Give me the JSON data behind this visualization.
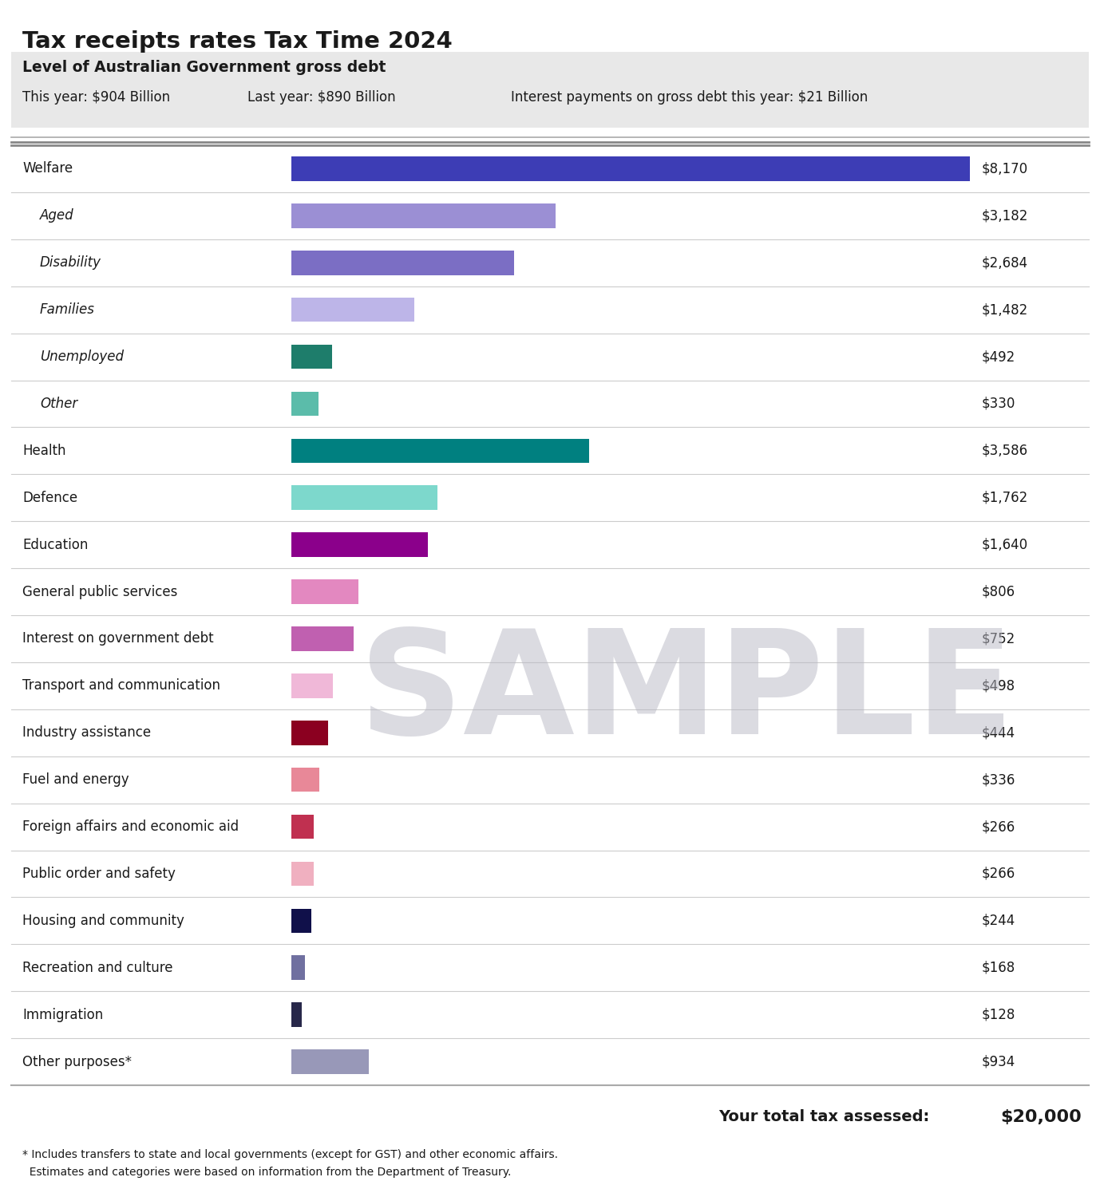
{
  "title": "Tax receipts rates Tax Time 2024",
  "subtitle_box_title": "Level of Australian Government gross debt",
  "subtitle_parts": [
    "This year: $904 Billion",
    "Last year: $890 Billion",
    "Interest payments on gross debt this year: $21 Billion"
  ],
  "labels_display": [
    "Welfare",
    "Aged",
    "Disability",
    "Families",
    "Unemployed",
    "Other",
    "Health",
    "Defence",
    "Education",
    "General public services",
    "Interest on government debt",
    "Transport and communication",
    "Industry assistance",
    "Fuel and energy",
    "Foreign affairs and economic aid",
    "Public order and safety",
    "Housing and community",
    "Recreation and culture",
    "Immigration",
    "Other purposes*"
  ],
  "italic_indices": [
    1,
    2,
    3,
    4,
    5
  ],
  "indented_indices": [
    1,
    2,
    3,
    4,
    5
  ],
  "values": [
    8170,
    3182,
    2684,
    1482,
    492,
    330,
    3586,
    1762,
    1640,
    806,
    752,
    498,
    444,
    336,
    266,
    266,
    244,
    168,
    128,
    934
  ],
  "value_labels": [
    "$8,170",
    "$3,182",
    "$2,684",
    "$1,482",
    "$492",
    "$330",
    "$3,586",
    "$1,762",
    "$1,640",
    "$806",
    "$752",
    "$498",
    "$444",
    "$336",
    "$266",
    "$266",
    "$244",
    "$168",
    "$128",
    "$934"
  ],
  "colors": [
    "#3d3db5",
    "#9b8fd4",
    "#7b6ec4",
    "#bdb5e8",
    "#1e7d6b",
    "#5bbcaa",
    "#008080",
    "#7dd8cc",
    "#8b008b",
    "#e388c0",
    "#c060b0",
    "#f0b8d8",
    "#8b0020",
    "#e88898",
    "#c03050",
    "#f0b0c0",
    "#10104a",
    "#7070a0",
    "#28284a",
    "#9898b8"
  ],
  "max_value": 8170,
  "background_color": "#ffffff",
  "header_box_color": "#e8e8e8",
  "total_tax": "$20,000",
  "footnote_line1": "* Includes transfers to state and local governments (except for GST) and other economic affairs.",
  "footnote_line2": "  Estimates and categories were based on information from the Department of Treasury.",
  "sample_text": "SAMPLE",
  "sample_color": "#b8b8c4"
}
